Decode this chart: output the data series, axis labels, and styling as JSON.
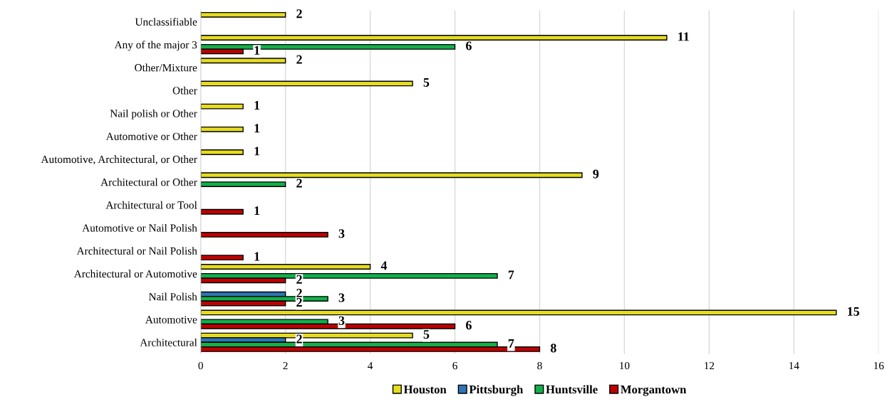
{
  "chart_data": {
    "type": "bar",
    "orientation": "horizontal",
    "categories": [
      "Unclassifiable",
      "Any of the major 3",
      "Other/Mixture",
      "Other",
      "Nail polish or Other",
      "Automotive or Other",
      "Automotive, Architectural, or Other",
      "Architectural or Other",
      "Architectural or Tool",
      "Automotive or Nail Polish",
      "Architectural or Nail Polish",
      "Architectural or Automotive",
      "Nail Polish",
      "Automotive",
      "Architectural"
    ],
    "series": [
      {
        "name": "Houston",
        "color": "#e6dc1e",
        "values": [
          2,
          11,
          2,
          5,
          1,
          1,
          1,
          9,
          null,
          null,
          null,
          4,
          null,
          15,
          5
        ]
      },
      {
        "name": "Pittsburgh",
        "color": "#2e75b6",
        "values": [
          null,
          null,
          null,
          null,
          null,
          null,
          null,
          null,
          null,
          null,
          null,
          null,
          2,
          null,
          2
        ]
      },
      {
        "name": "Huntsville",
        "color": "#12b04a",
        "values": [
          null,
          6,
          null,
          null,
          null,
          null,
          null,
          2,
          null,
          null,
          null,
          7,
          3,
          3,
          7
        ]
      },
      {
        "name": "Morgantown",
        "color": "#c00000",
        "values": [
          null,
          1,
          null,
          null,
          null,
          null,
          null,
          null,
          1,
          3,
          1,
          2,
          2,
          6,
          8
        ]
      }
    ],
    "xlim": [
      0,
      16
    ],
    "xticks": [
      0,
      2,
      4,
      6,
      8,
      10,
      12,
      14,
      16
    ],
    "grid": "x",
    "legend": "bottom",
    "data_labels": true
  }
}
